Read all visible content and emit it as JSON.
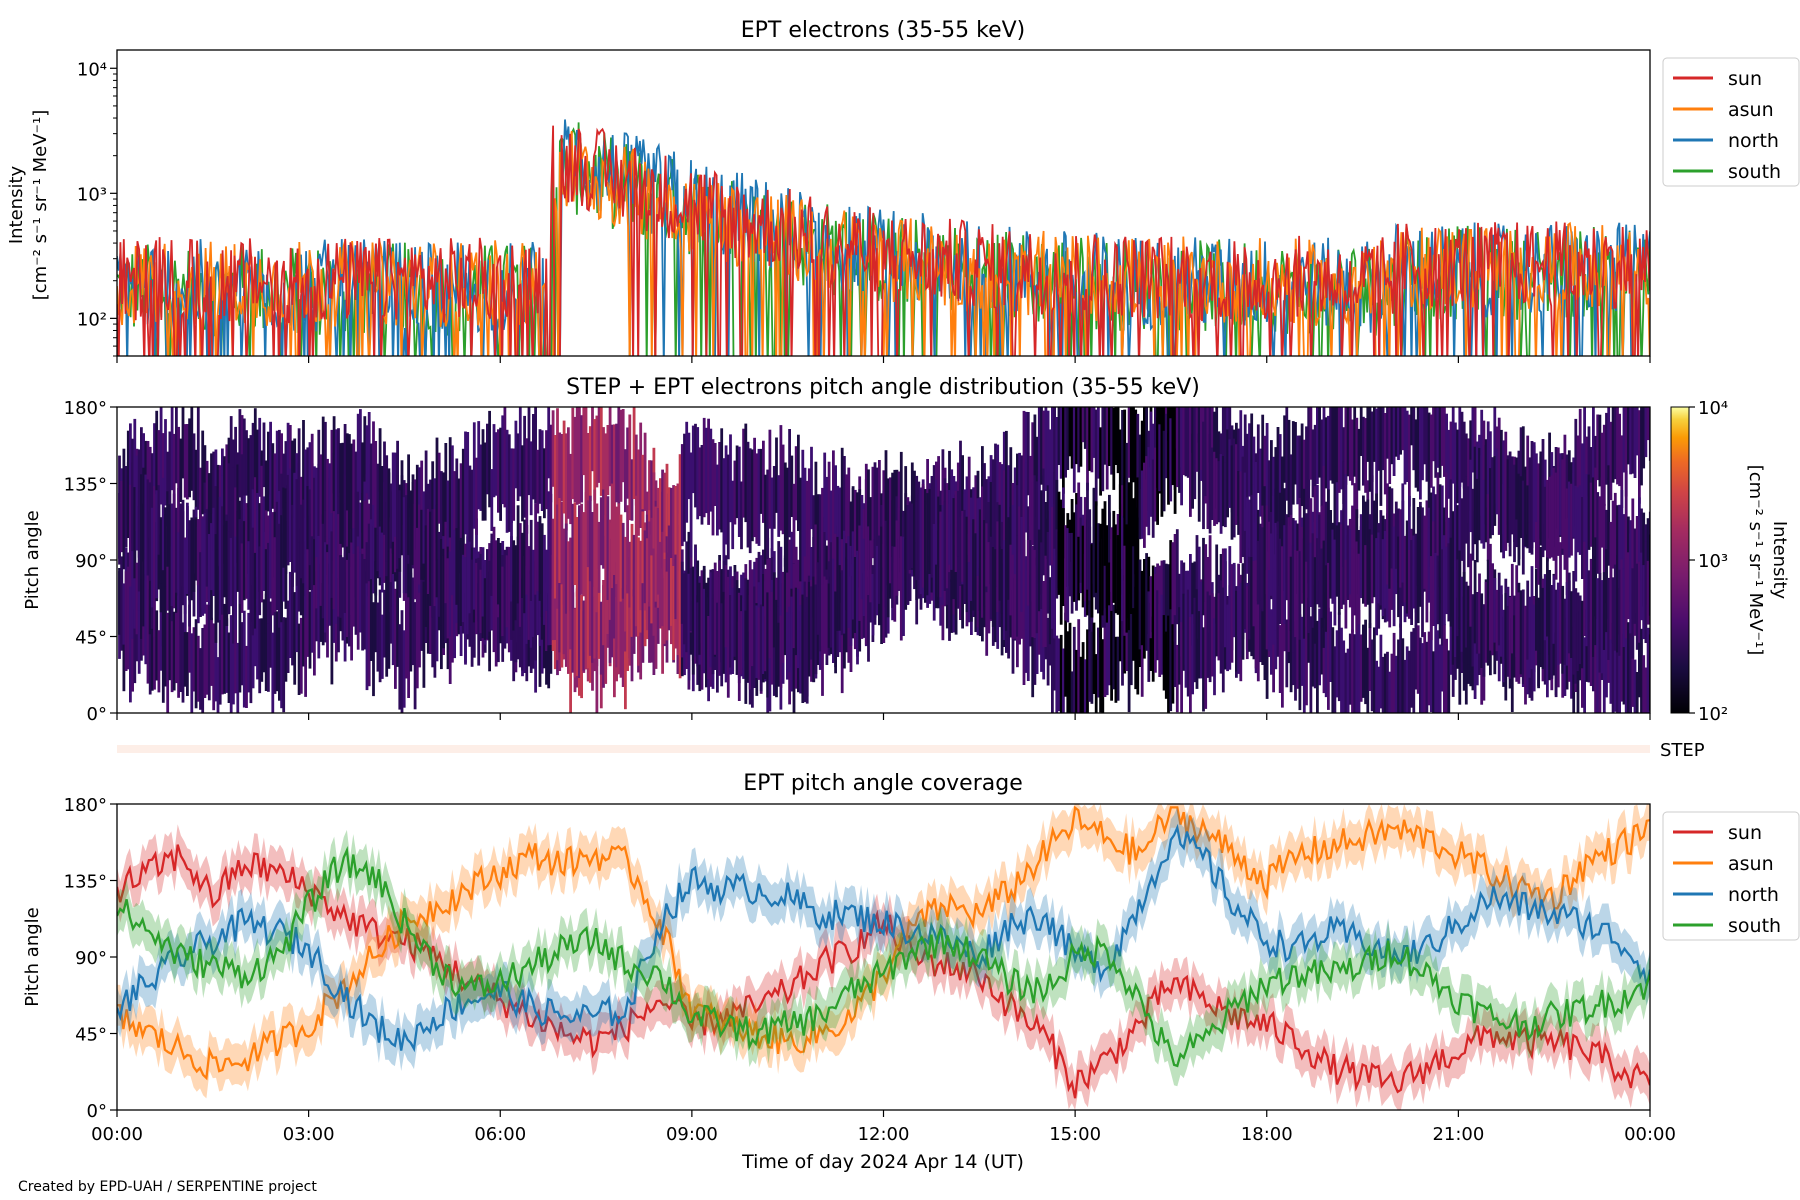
{
  "figure": {
    "credit": "Created by EPD-UAH / SERPENTINE project",
    "xlabel": "Time of day 2024 Apr 14 (UT)",
    "x_ticks": [
      "00:00",
      "03:00",
      "06:00",
      "09:00",
      "12:00",
      "15:00",
      "18:00",
      "21:00",
      "00:00"
    ],
    "x_range_hours": [
      0,
      24
    ],
    "series_colors": {
      "sun": "#d62728",
      "asun": "#ff7f0e",
      "north": "#1f77b4",
      "south": "#2ca02c"
    }
  },
  "chart_data": [
    {
      "type": "line",
      "title": "EPT electrons (35-55 keV)",
      "ylabel_line1": "Intensity",
      "ylabel_line2": "[cm⁻² s⁻¹ sr⁻¹ MeV⁻¹]",
      "yscale": "log",
      "ylim": [
        50,
        14000
      ],
      "y_ticks": [
        "10⁴",
        "10³",
        "10²"
      ],
      "legend": [
        "sun",
        "asun",
        "north",
        "south"
      ],
      "legend_position": "outside-right",
      "series": [
        {
          "name": "sun",
          "baseline": 200,
          "noise_decades": 0.35,
          "event": {
            "onset_h": 6.8,
            "peak": 1900,
            "decay_h": 2.0
          }
        },
        {
          "name": "asun",
          "baseline": 190,
          "noise_decades": 0.35,
          "event": {
            "onset_h": 6.8,
            "peak": 1600,
            "decay_h": 2.0
          }
        },
        {
          "name": "north",
          "baseline": 180,
          "noise_decades": 0.38,
          "event": {
            "onset_h": 6.8,
            "peak": 2000,
            "decay_h": 2.0
          }
        },
        {
          "name": "south",
          "baseline": 170,
          "noise_decades": 0.38,
          "event": {
            "onset_h": 6.8,
            "peak": 1700,
            "decay_h": 2.0
          }
        }
      ]
    },
    {
      "type": "heatmap",
      "title": "STEP + EPT electrons pitch angle distribution (35-55 keV)",
      "ylabel": "Pitch angle",
      "ylim": [
        0,
        180
      ],
      "y_ticks": [
        "180°",
        "135°",
        "90°",
        "45°",
        "0°"
      ],
      "colorbar": {
        "label_line1": "Intensity",
        "label_line2": "[cm⁻² s⁻¹ sr⁻¹ MeV⁻¹]",
        "range": [
          100,
          10000
        ],
        "ticks": [
          "10⁴",
          "10³",
          "10²"
        ],
        "colormap": "inferno"
      },
      "step_label": "STEP"
    },
    {
      "type": "line",
      "title": "EPT pitch angle coverage",
      "ylabel": "Pitch angle",
      "ylim": [
        0,
        180
      ],
      "y_ticks": [
        "180°",
        "135°",
        "90°",
        "45°",
        "0°"
      ],
      "legend": [
        "sun",
        "asun",
        "north",
        "south"
      ],
      "legend_position": "outside-right",
      "band_half_width_deg": 12,
      "series": [
        {
          "name": "sun",
          "x": [
            0,
            0.5,
            1,
            1.5,
            2,
            2.5,
            3,
            3.5,
            4,
            4.5,
            5,
            5.5,
            6,
            6.5,
            7,
            7.5,
            8,
            8.5,
            9,
            9.5,
            10,
            10.5,
            11,
            11.5,
            12,
            12.5,
            13,
            13.5,
            14,
            14.5,
            15,
            15.5,
            16,
            16.5,
            17,
            17.5,
            18,
            18.5,
            19,
            19.5,
            20,
            20.5,
            21,
            21.5,
            22,
            22.5,
            23,
            23.5,
            24
          ],
          "y": [
            130,
            140,
            150,
            125,
            145,
            140,
            130,
            115,
            105,
            100,
            90,
            75,
            65,
            55,
            45,
            40,
            50,
            65,
            50,
            55,
            60,
            70,
            85,
            95,
            110,
            90,
            85,
            80,
            60,
            45,
            15,
            30,
            50,
            75,
            65,
            55,
            50,
            40,
            25,
            20,
            15,
            25,
            35,
            45,
            40,
            40,
            35,
            25,
            15
          ]
        },
        {
          "name": "asun",
          "x": [
            0,
            0.5,
            1,
            1.5,
            2,
            2.5,
            3,
            3.5,
            4,
            4.5,
            5,
            5.5,
            6,
            6.5,
            7,
            7.5,
            8,
            8.5,
            9,
            9.5,
            10,
            10.5,
            11,
            11.5,
            12,
            12.5,
            13,
            13.5,
            14,
            14.5,
            15,
            15.5,
            16,
            16.5,
            17,
            17.5,
            18,
            18.5,
            19,
            19.5,
            20,
            20.5,
            21,
            21.5,
            22,
            22.5,
            23,
            23.5,
            24
          ],
          "y": [
            55,
            45,
            35,
            25,
            30,
            40,
            50,
            70,
            90,
            110,
            120,
            130,
            140,
            150,
            145,
            150,
            145,
            110,
            60,
            50,
            45,
            40,
            45,
            55,
            80,
            110,
            120,
            115,
            130,
            150,
            170,
            160,
            150,
            175,
            165,
            150,
            135,
            150,
            155,
            160,
            165,
            160,
            150,
            140,
            130,
            125,
            145,
            155,
            165
          ]
        },
        {
          "name": "north",
          "x": [
            0,
            0.5,
            1,
            1.5,
            2,
            2.5,
            3,
            3.5,
            4,
            4.5,
            5,
            5.5,
            6,
            6.5,
            7,
            7.5,
            8,
            8.5,
            9,
            9.5,
            10,
            10.5,
            11,
            11.5,
            12,
            12.5,
            13,
            13.5,
            14,
            14.5,
            15,
            15.5,
            16,
            16.5,
            17,
            17.5,
            18,
            18.5,
            19,
            19.5,
            20,
            20.5,
            21,
            21.5,
            22,
            22.5,
            23,
            23.5,
            24
          ],
          "y": [
            60,
            75,
            90,
            100,
            110,
            105,
            95,
            70,
            50,
            40,
            55,
            65,
            70,
            60,
            55,
            55,
            60,
            110,
            135,
            130,
            130,
            125,
            115,
            115,
            110,
            105,
            100,
            90,
            110,
            115,
            90,
            85,
            120,
            160,
            150,
            120,
            100,
            95,
            105,
            100,
            90,
            95,
            110,
            125,
            120,
            115,
            110,
            100,
            80
          ]
        },
        {
          "name": "south",
          "x": [
            0,
            0.5,
            1,
            1.5,
            2,
            2.5,
            3,
            3.5,
            4,
            4.5,
            5,
            5.5,
            6,
            6.5,
            7,
            7.5,
            8,
            8.5,
            9,
            9.5,
            10,
            10.5,
            11,
            11.5,
            12,
            12.5,
            13,
            13.5,
            14,
            14.5,
            15,
            15.5,
            16,
            16.5,
            17,
            17.5,
            18,
            18.5,
            19,
            19.5,
            20,
            20.5,
            21,
            21.5,
            22,
            22.5,
            23,
            23.5,
            24
          ],
          "y": [
            120,
            105,
            90,
            85,
            80,
            90,
            120,
            145,
            140,
            110,
            85,
            70,
            75,
            85,
            95,
            100,
            85,
            80,
            55,
            50,
            45,
            50,
            55,
            70,
            80,
            95,
            100,
            90,
            75,
            70,
            90,
            95,
            65,
            30,
            40,
            60,
            75,
            80,
            80,
            85,
            95,
            80,
            65,
            55,
            50,
            55,
            60,
            65,
            75
          ]
        }
      ]
    }
  ]
}
